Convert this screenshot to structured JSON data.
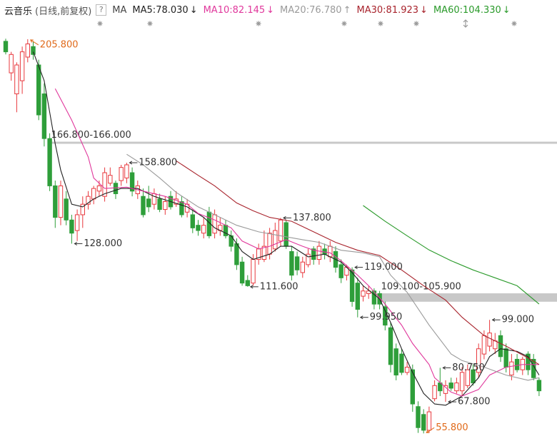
{
  "chart_data": {
    "type": "candlestick",
    "symbol": "云音乐",
    "period": "(日线,前复权)",
    "help": "?",
    "indicator": "MA",
    "separator": ":",
    "ylim": [
      51,
      208.5
    ],
    "up_color": "#e8383d",
    "down_color": "#2e9e3a",
    "open": [
      205,
      193,
      185,
      190,
      199,
      203,
      196,
      185,
      168,
      150,
      138,
      145,
      137,
      133,
      139,
      143,
      145,
      148,
      146,
      151,
      151,
      152,
      153,
      155,
      147,
      146,
      145,
      143,
      145,
      141,
      146,
      143,
      144,
      140,
      139,
      135,
      132,
      140,
      132,
      133,
      135,
      131,
      128,
      121,
      114,
      113,
      122,
      122,
      124,
      126,
      129,
      136,
      125,
      123,
      117,
      120,
      126,
      122,
      126,
      123,
      125,
      120,
      116,
      118,
      113,
      108,
      109,
      110,
      109,
      104,
      96,
      88,
      86,
      79,
      80,
      66,
      63,
      57,
      69,
      75,
      71,
      75,
      72,
      72,
      74,
      80,
      79,
      86,
      89,
      88,
      93,
      88,
      78,
      84,
      80,
      86,
      84,
      76
    ],
    "high": [
      206,
      201,
      197,
      203,
      205.8,
      205,
      198,
      189,
      170,
      152,
      152,
      148,
      139,
      141,
      146,
      148,
      150,
      152,
      157,
      157,
      152,
      158,
      158.8,
      157,
      152,
      149,
      150,
      149,
      147,
      146,
      148,
      148,
      146,
      145,
      141,
      137,
      138,
      142,
      141,
      138,
      137,
      133,
      130,
      123,
      116,
      124,
      128,
      133,
      134,
      136,
      137.8,
      137,
      127,
      125,
      123,
      126,
      127,
      129,
      128,
      129,
      127,
      122,
      120,
      119,
      115,
      112,
      112,
      111,
      110,
      106,
      98,
      90,
      88,
      83,
      82,
      68,
      65,
      66,
      76,
      80.75,
      76,
      77,
      77,
      81,
      82,
      82,
      90,
      95,
      99,
      94,
      95,
      90,
      86,
      86,
      85,
      87,
      86,
      77
    ],
    "low": [
      200,
      190,
      178,
      185,
      197,
      198,
      175,
      165,
      148,
      134,
      135,
      135,
      128,
      129,
      134,
      141,
      143,
      146,
      144,
      150,
      145,
      150,
      151,
      146,
      145,
      138,
      140,
      141,
      140,
      139,
      141,
      142,
      138,
      138,
      132,
      131,
      130,
      130,
      130,
      131,
      130,
      125,
      118,
      112,
      111.6,
      112,
      120,
      121,
      122,
      125,
      127,
      126,
      114,
      116,
      115,
      119,
      120,
      120,
      122,
      121,
      117,
      113,
      114,
      104,
      99.95,
      106,
      107,
      103,
      103,
      95,
      79,
      76,
      78,
      78,
      64,
      56,
      55.8,
      56,
      68,
      70,
      67.8,
      72,
      71,
      70,
      73,
      74,
      77,
      84,
      87,
      86,
      83,
      79,
      76,
      79,
      78,
      78,
      76,
      70
    ],
    "close": [
      201,
      200,
      196,
      201,
      204,
      200,
      177,
      168,
      150,
      138,
      150,
      137,
      132,
      139,
      143,
      146,
      149,
      150,
      155,
      154,
      147,
      157,
      158,
      148,
      150,
      139,
      142,
      147,
      141,
      144,
      142,
      145,
      139,
      143,
      134,
      133,
      135,
      131,
      139,
      135,
      131,
      127,
      120,
      113,
      112,
      122,
      126,
      127,
      132,
      133,
      137,
      127,
      116,
      118,
      121,
      124,
      122,
      127,
      124,
      127,
      119,
      115,
      119,
      106,
      103,
      110,
      110,
      105,
      105,
      97,
      82,
      78,
      79,
      81,
      67,
      58,
      57,
      64,
      74,
      72,
      74,
      73,
      75,
      79,
      80,
      75,
      88,
      93,
      94,
      91,
      85,
      81,
      83,
      80,
      84,
      80,
      77,
      72
    ],
    "series": [
      {
        "name": "MA5",
        "legend_value": "78.030",
        "trend": "↓",
        "color": "#222222",
        "x": [
          5,
          7,
          8,
          9,
          10,
          12,
          14,
          16,
          18,
          21,
          24,
          27,
          30,
          33,
          36,
          38,
          41,
          43,
          45,
          48,
          50,
          52,
          55,
          58,
          61,
          63,
          65,
          68,
          70,
          72,
          74,
          76,
          78,
          80,
          83,
          86,
          88,
          90,
          93,
          95,
          97
        ],
        "values": [
          201,
          190,
          178,
          166,
          156,
          143,
          142,
          145,
          147,
          149,
          149,
          146,
          144,
          142,
          138,
          134,
          131,
          125,
          122,
          124,
          127,
          127,
          123,
          124,
          121,
          117,
          112,
          107,
          98,
          88,
          79,
          71,
          67,
          66.5,
          70,
          77,
          85,
          88,
          87,
          85,
          78
        ]
      },
      {
        "name": "MA10",
        "legend_value": "82.145",
        "trend": "↓",
        "color": "#e0389c",
        "x": [
          9,
          12,
          15,
          16,
          18,
          22,
          25,
          29,
          33,
          35,
          38,
          41,
          43,
          46,
          48,
          51,
          54,
          56,
          59,
          61,
          64,
          66,
          69,
          72,
          74,
          77,
          78,
          81,
          83,
          86,
          88,
          91,
          94,
          97
        ],
        "values": [
          187,
          175,
          161,
          153,
          149,
          149.5,
          148,
          146,
          143,
          139.5,
          137,
          134,
          129,
          126,
          127,
          129.5,
          127,
          125.5,
          124.5,
          121.5,
          116,
          112,
          105,
          97,
          90,
          82,
          77,
          71.5,
          70,
          72.5,
          78,
          81,
          82,
          82
        ]
      },
      {
        "name": "MA20",
        "legend_value": "76.780",
        "trend": "↑",
        "color": "#9a9a9a",
        "x": [
          22,
          25,
          28,
          31,
          35,
          38,
          42,
          46,
          50,
          54,
          57,
          61,
          65,
          68,
          70,
          73,
          77,
          81,
          83,
          87,
          91,
          95,
          97
        ],
        "values": [
          162,
          158,
          153,
          147.5,
          142,
          139,
          135,
          132.5,
          131,
          129.5,
          128.5,
          125.5,
          124.5,
          123,
          116,
          109.5,
          97,
          86,
          83.5,
          81,
          78,
          76,
          77
        ]
      },
      {
        "name": "MA30",
        "legend_value": "81.923",
        "trend": "↓",
        "color": "#a8232c",
        "x": [
          31,
          35,
          38,
          42,
          45,
          48,
          52,
          56,
          60,
          64,
          68,
          72,
          76,
          80,
          83,
          87,
          91,
          95,
          97
        ],
        "values": [
          159.5,
          154,
          150,
          143.5,
          140.5,
          138,
          136.5,
          132.5,
          128.5,
          125.5,
          123.5,
          118,
          112,
          106.5,
          100,
          93,
          89,
          84.5,
          82
        ]
      },
      {
        "name": "MA60",
        "legend_value": "104.330",
        "trend": "↓",
        "color": "#2a9a2a",
        "x": [
          65,
          69,
          73,
          77,
          81,
          85,
          89,
          93,
          97
        ],
        "values": [
          142.5,
          136.5,
          131,
          125.6,
          121.5,
          118,
          115,
          112,
          105
        ]
      }
    ],
    "annotations": [
      {
        "index": 4,
        "value": 205.8,
        "label": "205.800",
        "color": "#e06a1a",
        "dir": "up"
      },
      {
        "index": 22,
        "value": 158.8,
        "label": "158.800",
        "color": "#333333",
        "dir": "flat"
      },
      {
        "index": 12,
        "value": 128.0,
        "label": "128.000",
        "color": "#333333",
        "dir": "flat"
      },
      {
        "index": 50,
        "value": 137.8,
        "label": "137.800",
        "color": "#333333",
        "dir": "flat"
      },
      {
        "index": 44,
        "value": 111.6,
        "label": "111.600",
        "color": "#333333",
        "dir": "flat"
      },
      {
        "index": 63,
        "value": 119.0,
        "label": "119.000",
        "color": "#333333",
        "dir": "flat"
      },
      {
        "index": 64,
        "value": 99.95,
        "label": "99.950",
        "color": "#333333",
        "dir": "flat"
      },
      {
        "index": 79,
        "value": 80.75,
        "label": "80.750",
        "color": "#333333",
        "dir": "flat"
      },
      {
        "index": 80,
        "value": 67.8,
        "label": "67.800",
        "color": "#333333",
        "dir": "flat"
      },
      {
        "index": 76,
        "value": 55.8,
        "label": "55.800",
        "color": "#e06a1a",
        "dir": "down"
      },
      {
        "index": 88,
        "value": 99.0,
        "label": "99.000",
        "color": "#333333",
        "dir": "flat"
      }
    ],
    "ranges": [
      {
        "index": 8,
        "high": 166.8,
        "low": 166.0,
        "label": "166.800-166.000"
      },
      {
        "index": 68,
        "high": 109.1,
        "low": 105.9,
        "label": "109.100-105.900"
      }
    ]
  }
}
